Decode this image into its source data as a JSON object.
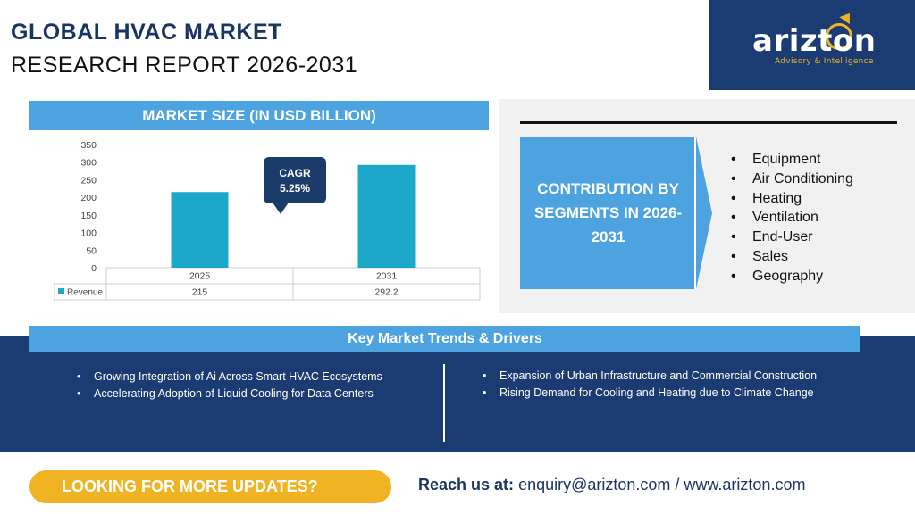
{
  "header": {
    "title_line1": "GLOBAL HVAC MARKET",
    "title_line2": "RESEARCH REPORT 2026-2031"
  },
  "logo": {
    "name": "arizton",
    "tagline": "Advisory & Intelligence",
    "brand_color": "#1b3b73",
    "accent_color": "#f0b323"
  },
  "market_size": {
    "header": "MARKET SIZE (IN USD BILLION)",
    "cagr_label": "CAGR",
    "cagr_value": "5.25%"
  },
  "chart_data": {
    "type": "bar",
    "categories": [
      "2025",
      "2031"
    ],
    "series": [
      {
        "name": "Revenue",
        "values": [
          215,
          292.2
        ]
      }
    ],
    "value_labels": [
      "215",
      "292.2"
    ],
    "y_ticks": [
      "0",
      "50",
      "100",
      "150",
      "200",
      "250",
      "300",
      "350"
    ],
    "ylim": [
      0,
      350
    ],
    "bar_color": "#1ba8c8",
    "grid": false,
    "data_table": true
  },
  "contribution": {
    "label": "CONTRIBUTION BY SEGMENTS IN 2026-2031",
    "segments": [
      "Equipment",
      "Air Conditioning",
      "Heating",
      "Ventilation",
      "End-User",
      "Sales",
      "Geography"
    ]
  },
  "trends": {
    "header": "Key Market Trends & Drivers",
    "left": [
      "Growing Integration of Ai Across Smart HVAC Ecosystems",
      "Accelerating Adoption of Liquid Cooling for Data Centers"
    ],
    "right": [
      "Expansion of Urban Infrastructure and Commercial Construction",
      "Rising Demand for Cooling and Heating due to Climate Change"
    ]
  },
  "footer": {
    "cta": "LOOKING FOR MORE UPDATES?",
    "reach_label": "Reach us at:",
    "contact": "enquiry@arizton.com / www.arizton.com"
  }
}
